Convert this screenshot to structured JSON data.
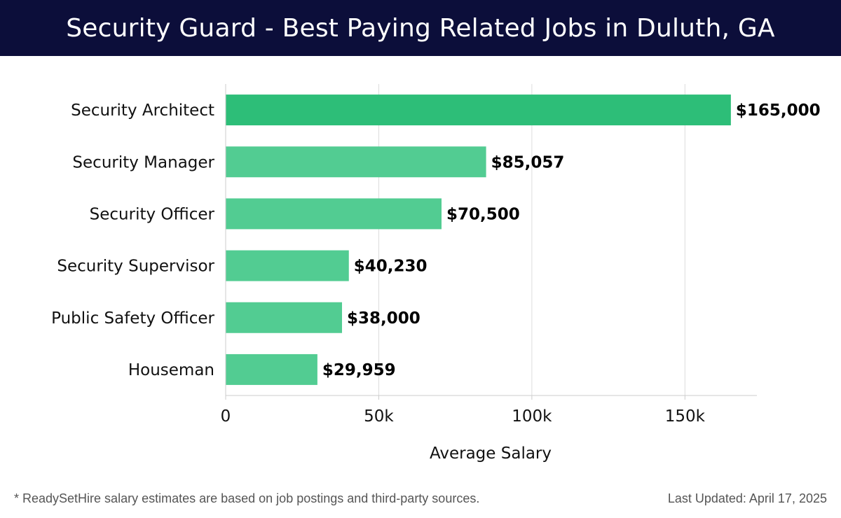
{
  "header": {
    "title": "Security Guard - Best Paying Related Jobs in Duluth, GA"
  },
  "chart_data": {
    "type": "bar",
    "orientation": "horizontal",
    "title": "Security Guard - Best Paying Related Jobs in Duluth, GA",
    "xlabel": "Average Salary",
    "ylabel": "",
    "xlim": [
      0,
      173500
    ],
    "x_ticks": [
      0,
      50000,
      100000,
      150000
    ],
    "x_tick_labels": [
      "0",
      "50k",
      "100k",
      "150k"
    ],
    "grid": "vertical",
    "categories": [
      "Security Architect",
      "Security Manager",
      "Security Officer",
      "Security Supervisor",
      "Public Safety Officer",
      "Houseman"
    ],
    "values": [
      165000,
      85057,
      70500,
      40230,
      38000,
      29959
    ],
    "value_labels": [
      "$165,000",
      "$85,057",
      "$70,500",
      "$40,230",
      "$38,000",
      "$29,959"
    ],
    "colors": {
      "highlight": "#2dbe78",
      "bar": "#52cc92"
    }
  },
  "footer": {
    "note": "* ReadySetHire salary estimates are based on job postings and third-party sources.",
    "updated": "Last Updated: April 17, 2025"
  }
}
